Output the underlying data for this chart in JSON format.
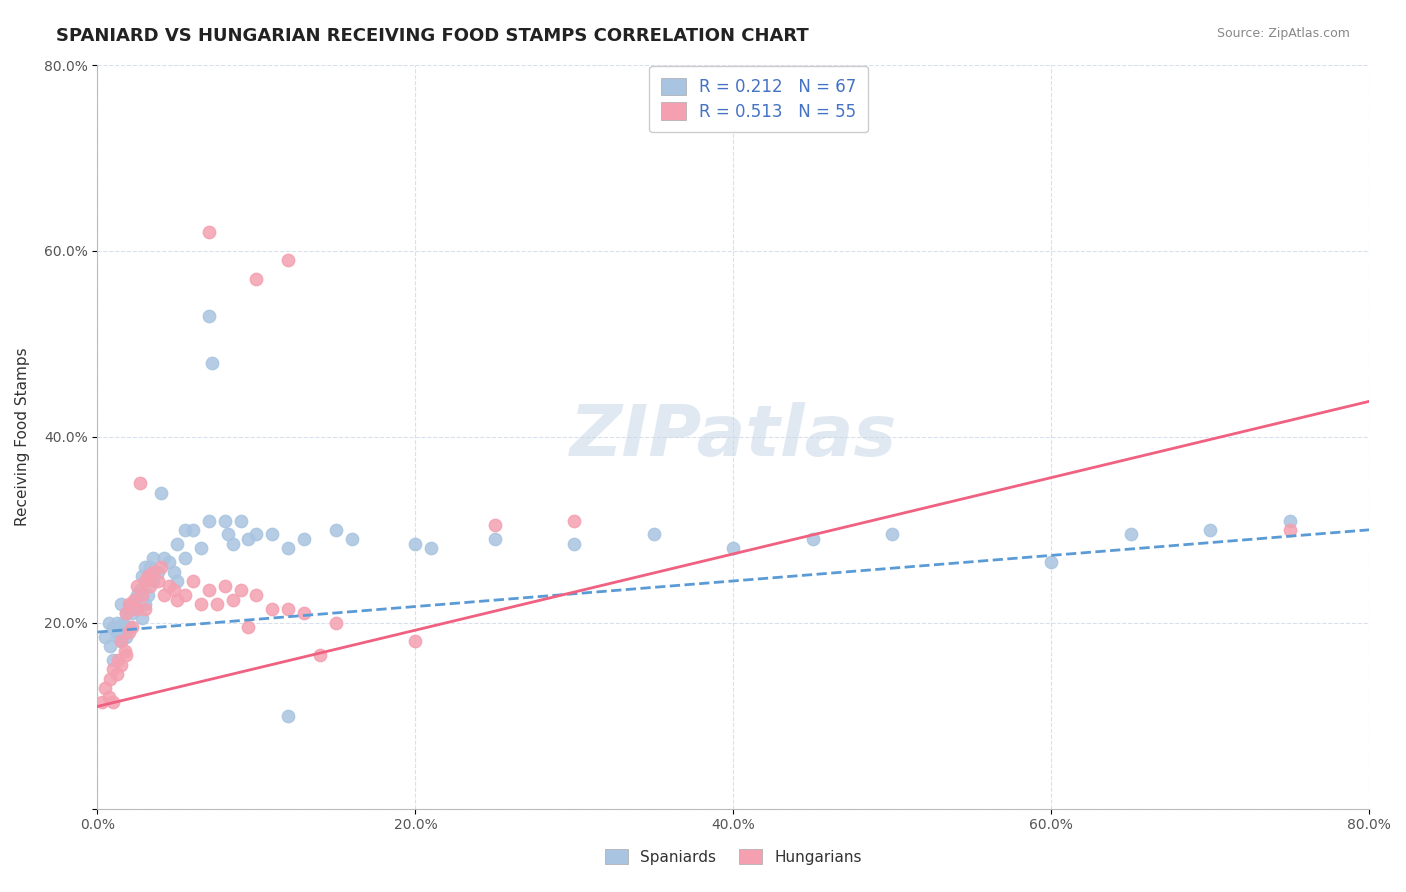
{
  "title": "SPANIARD VS HUNGARIAN RECEIVING FOOD STAMPS CORRELATION CHART",
  "source_text": "Source: ZipAtlas.com",
  "ylabel": "Receiving Food Stamps",
  "xlabel": "",
  "xlim": [
    0.0,
    0.8
  ],
  "ylim": [
    0.0,
    0.8
  ],
  "x_ticks": [
    0.0,
    0.2,
    0.4,
    0.6,
    0.8
  ],
  "y_ticks": [
    0.0,
    0.2,
    0.4,
    0.6,
    0.8
  ],
  "x_tick_labels": [
    "0.0%",
    "20.0%",
    "40.0%",
    "60.0%",
    "80.0%"
  ],
  "y_tick_labels": [
    "",
    "20.0%",
    "40.0%",
    "60.0%",
    "80.0%"
  ],
  "spaniard_color": "#a8c4e0",
  "hungarian_color": "#f4a0b0",
  "spaniard_line_color": "#5b9bd5",
  "hungarian_line_color": "#f06080",
  "R_spaniard": 0.212,
  "N_spaniard": 67,
  "R_hungarian": 0.513,
  "N_hungarian": 55,
  "watermark": "ZIPatlas",
  "background_color": "#ffffff",
  "grid_color": "#d0d8e8",
  "spaniard_scatter": [
    [
      0.005,
      0.185
    ],
    [
      0.007,
      0.2
    ],
    [
      0.008,
      0.175
    ],
    [
      0.01,
      0.16
    ],
    [
      0.01,
      0.195
    ],
    [
      0.012,
      0.19
    ],
    [
      0.012,
      0.2
    ],
    [
      0.013,
      0.185
    ],
    [
      0.015,
      0.18
    ],
    [
      0.015,
      0.22
    ],
    [
      0.016,
      0.2
    ],
    [
      0.017,
      0.195
    ],
    [
      0.018,
      0.185
    ],
    [
      0.018,
      0.21
    ],
    [
      0.02,
      0.215
    ],
    [
      0.02,
      0.195
    ],
    [
      0.022,
      0.22
    ],
    [
      0.022,
      0.21
    ],
    [
      0.025,
      0.23
    ],
    [
      0.025,
      0.215
    ],
    [
      0.027,
      0.235
    ],
    [
      0.028,
      0.205
    ],
    [
      0.028,
      0.25
    ],
    [
      0.03,
      0.26
    ],
    [
      0.03,
      0.22
    ],
    [
      0.032,
      0.23
    ],
    [
      0.033,
      0.26
    ],
    [
      0.035,
      0.245
    ],
    [
      0.035,
      0.27
    ],
    [
      0.038,
      0.255
    ],
    [
      0.04,
      0.34
    ],
    [
      0.042,
      0.27
    ],
    [
      0.045,
      0.265
    ],
    [
      0.048,
      0.255
    ],
    [
      0.05,
      0.245
    ],
    [
      0.05,
      0.285
    ],
    [
      0.055,
      0.27
    ],
    [
      0.055,
      0.3
    ],
    [
      0.06,
      0.3
    ],
    [
      0.065,
      0.28
    ],
    [
      0.07,
      0.31
    ],
    [
      0.07,
      0.53
    ],
    [
      0.072,
      0.48
    ],
    [
      0.08,
      0.31
    ],
    [
      0.082,
      0.295
    ],
    [
      0.085,
      0.285
    ],
    [
      0.09,
      0.31
    ],
    [
      0.095,
      0.29
    ],
    [
      0.1,
      0.295
    ],
    [
      0.11,
      0.295
    ],
    [
      0.12,
      0.28
    ],
    [
      0.13,
      0.29
    ],
    [
      0.15,
      0.3
    ],
    [
      0.16,
      0.29
    ],
    [
      0.2,
      0.285
    ],
    [
      0.21,
      0.28
    ],
    [
      0.25,
      0.29
    ],
    [
      0.3,
      0.285
    ],
    [
      0.35,
      0.295
    ],
    [
      0.4,
      0.28
    ],
    [
      0.45,
      0.29
    ],
    [
      0.5,
      0.295
    ],
    [
      0.6,
      0.265
    ],
    [
      0.65,
      0.295
    ],
    [
      0.12,
      0.1
    ],
    [
      0.7,
      0.3
    ],
    [
      0.75,
      0.31
    ]
  ],
  "hungarian_scatter": [
    [
      0.003,
      0.115
    ],
    [
      0.005,
      0.13
    ],
    [
      0.007,
      0.12
    ],
    [
      0.008,
      0.14
    ],
    [
      0.01,
      0.115
    ],
    [
      0.01,
      0.15
    ],
    [
      0.012,
      0.145
    ],
    [
      0.013,
      0.16
    ],
    [
      0.015,
      0.155
    ],
    [
      0.015,
      0.18
    ],
    [
      0.017,
      0.17
    ],
    [
      0.018,
      0.165
    ],
    [
      0.018,
      0.21
    ],
    [
      0.02,
      0.19
    ],
    [
      0.02,
      0.22
    ],
    [
      0.022,
      0.195
    ],
    [
      0.023,
      0.225
    ],
    [
      0.025,
      0.215
    ],
    [
      0.025,
      0.24
    ],
    [
      0.027,
      0.35
    ],
    [
      0.028,
      0.23
    ],
    [
      0.03,
      0.245
    ],
    [
      0.03,
      0.215
    ],
    [
      0.032,
      0.25
    ],
    [
      0.033,
      0.24
    ],
    [
      0.035,
      0.255
    ],
    [
      0.038,
      0.245
    ],
    [
      0.04,
      0.26
    ],
    [
      0.042,
      0.23
    ],
    [
      0.045,
      0.24
    ],
    [
      0.048,
      0.235
    ],
    [
      0.05,
      0.225
    ],
    [
      0.055,
      0.23
    ],
    [
      0.06,
      0.245
    ],
    [
      0.065,
      0.22
    ],
    [
      0.07,
      0.235
    ],
    [
      0.075,
      0.22
    ],
    [
      0.08,
      0.24
    ],
    [
      0.085,
      0.225
    ],
    [
      0.09,
      0.235
    ],
    [
      0.095,
      0.195
    ],
    [
      0.1,
      0.23
    ],
    [
      0.11,
      0.215
    ],
    [
      0.12,
      0.215
    ],
    [
      0.13,
      0.21
    ],
    [
      0.14,
      0.165
    ],
    [
      0.15,
      0.2
    ],
    [
      0.2,
      0.18
    ],
    [
      0.07,
      0.62
    ],
    [
      0.1,
      0.57
    ],
    [
      0.12,
      0.59
    ],
    [
      0.25,
      0.305
    ],
    [
      0.3,
      0.31
    ],
    [
      0.75,
      0.3
    ]
  ]
}
